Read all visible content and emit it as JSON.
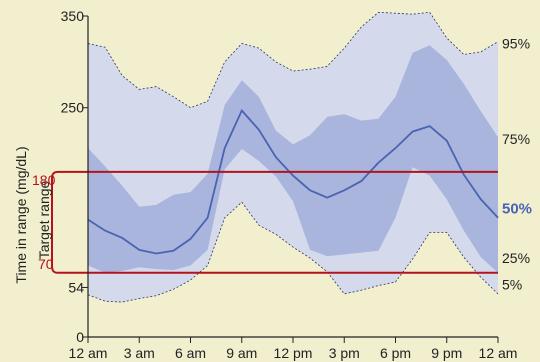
{
  "chart_data": {
    "type": "area",
    "ylabel": "Time in range (mg/dL)",
    "target_label": "Target range",
    "ylim": [
      0,
      350
    ],
    "y_ticks": [
      "0",
      "54",
      "70",
      "180",
      "250",
      "350"
    ],
    "x_ticks": [
      "12 am",
      "3 am",
      "6 am",
      "9 am",
      "12 pm",
      "3 pm",
      "6 pm",
      "9 pm",
      "12 am"
    ],
    "target_range": [
      70,
      180
    ],
    "target_labels": [
      "70",
      "180"
    ],
    "x_hours": [
      0,
      1,
      2,
      3,
      4,
      5,
      6,
      7,
      8,
      9,
      10,
      11,
      12,
      13,
      14,
      15,
      16,
      17,
      18,
      19,
      20,
      21,
      22,
      23,
      24
    ],
    "series": [
      {
        "name": "95%",
        "values": [
          320,
          316,
          285,
          270,
          273,
          262,
          250,
          257,
          300,
          320,
          315,
          300,
          290,
          292,
          295,
          315,
          338,
          354,
          353,
          352,
          354,
          326,
          308,
          311,
          322
        ]
      },
      {
        "name": "75%",
        "values": [
          206,
          186,
          165,
          142,
          144,
          155,
          158,
          178,
          253,
          280,
          262,
          225,
          210,
          220,
          240,
          243,
          236,
          238,
          262,
          310,
          318,
          302,
          276,
          246,
          218
        ]
      },
      {
        "name": "50%",
        "values": [
          128,
          116,
          108,
          95,
          91,
          94,
          107,
          130,
          206,
          247,
          226,
          196,
          176,
          160,
          152,
          160,
          170,
          190,
          206,
          224,
          230,
          214,
          177,
          150,
          130
        ]
      },
      {
        "name": "25%",
        "values": [
          78,
          70,
          72,
          76,
          74,
          73,
          78,
          95,
          183,
          205,
          192,
          175,
          148,
          95,
          88,
          90,
          92,
          94,
          130,
          185,
          176,
          150,
          116,
          87,
          70
        ]
      },
      {
        "name": "5%",
        "values": [
          46,
          39,
          38,
          42,
          45,
          52,
          62,
          78,
          130,
          147,
          122,
          112,
          98,
          86,
          71,
          47,
          51,
          56,
          60,
          85,
          114,
          114,
          87,
          65,
          47
        ]
      }
    ],
    "legend": [
      "95%",
      "75%",
      "50%",
      "25%",
      "5%"
    ],
    "colors": {
      "background": "#f2efcf",
      "outer_band": "#d4daec",
      "inner_band": "#a9b5dc",
      "median": "#4a64b3",
      "target": "#b5121b",
      "text": "#222222"
    }
  }
}
